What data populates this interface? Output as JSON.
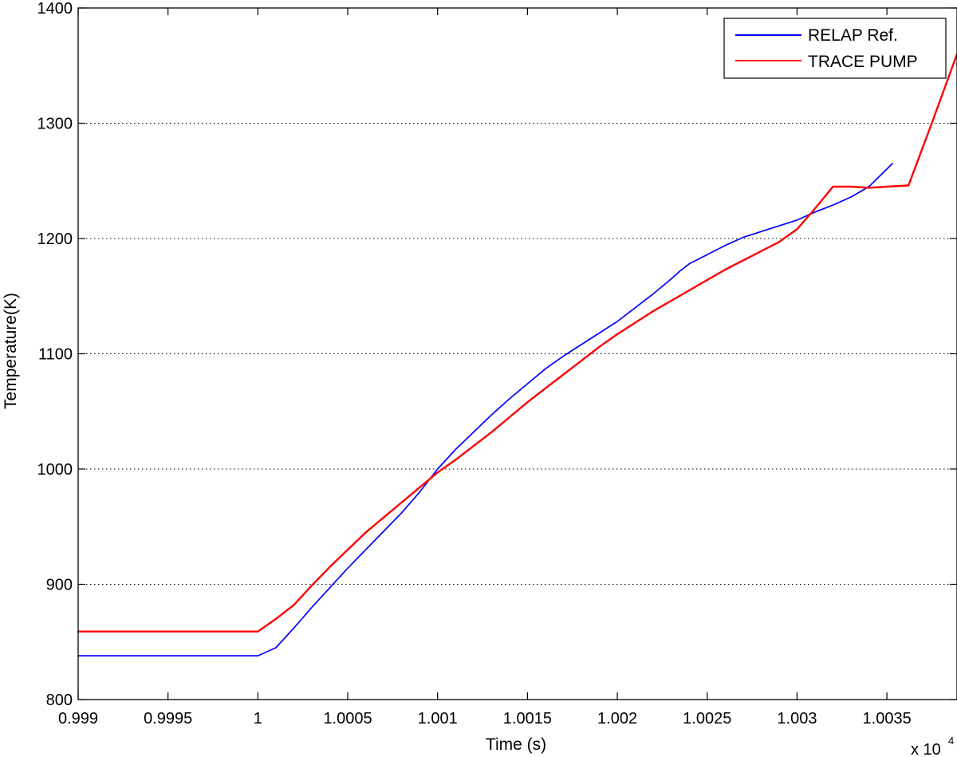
{
  "chart_data": {
    "type": "line",
    "title": "",
    "xlabel": "Time (s)",
    "ylabel": "Temperature(K)",
    "x_exponent_label": "x 10",
    "x_exponent_power": "4",
    "xlim": [
      0.999,
      1.00389
    ],
    "ylim": [
      800,
      1400
    ],
    "xticks": [
      0.999,
      0.9995,
      1,
      1.0005,
      1.001,
      1.0015,
      1.002,
      1.0025,
      1.003,
      1.0035
    ],
    "xtick_labels": [
      "0.999",
      "0.9995",
      "1",
      "1.0005",
      "1.001",
      "1.0015",
      "1.002",
      "1.0025",
      "1.003",
      "1.0035"
    ],
    "yticks": [
      800,
      900,
      1000,
      1100,
      1200,
      1300,
      1400
    ],
    "ytick_labels": [
      "800",
      "900",
      "1000",
      "1100",
      "1200",
      "1300",
      "1400"
    ],
    "grid": "horizontal dotted",
    "legend_position": "top-right",
    "series": [
      {
        "name": "RELAP Ref.",
        "color": "#0000ff",
        "x": [
          0.999,
          1,
          1.0001,
          1.0002,
          1.0003,
          1.0004,
          1.0005,
          1.0006,
          1.0007,
          1.0008,
          1.0009,
          1.001,
          1.0011,
          1.0012,
          1.0013,
          1.0014,
          1.0015,
          1.0016,
          1.0017,
          1.0018,
          1.0019,
          1.002,
          1.0021,
          1.0022,
          1.0023,
          1.00235,
          1.0024,
          1.0025,
          1.0026,
          1.0027,
          1.0028,
          1.0029,
          1.003,
          1.0031,
          1.0032,
          1.0033,
          1.0034,
          1.00353
        ],
        "y": [
          838,
          838,
          845,
          862,
          880,
          897,
          914,
          930,
          946,
          962,
          980,
          1000,
          1017,
          1032,
          1047,
          1061,
          1074,
          1087,
          1098,
          1108,
          1118,
          1128,
          1140,
          1152,
          1165,
          1172,
          1178,
          1186,
          1194,
          1201,
          1206,
          1211,
          1216,
          1223,
          1229,
          1236,
          1245,
          1265
        ]
      },
      {
        "name": "TRACE PUMP",
        "color": "#ff0000",
        "x": [
          0.999,
          1,
          1.0001,
          1.0002,
          1.0003,
          1.0004,
          1.0005,
          1.0006,
          1.0007,
          1.0008,
          1.0009,
          1.001,
          1.0011,
          1.0012,
          1.0013,
          1.0014,
          1.0015,
          1.0016,
          1.0017,
          1.0018,
          1.0019,
          1.002,
          1.0021,
          1.0022,
          1.0023,
          1.0024,
          1.0025,
          1.0026,
          1.0027,
          1.0028,
          1.0029,
          1.003,
          1.0031,
          1.0032,
          1.0033,
          1.0034,
          1.0035,
          1.00362,
          1.00375,
          1.00389
        ],
        "y": [
          859,
          859,
          870,
          882,
          899,
          915,
          930,
          945,
          958,
          971,
          984,
          997,
          1008,
          1020,
          1032,
          1045,
          1058,
          1070,
          1082,
          1094,
          1106,
          1117,
          1127,
          1137,
          1146,
          1155,
          1164,
          1173,
          1181,
          1189,
          1197,
          1208,
          1226,
          1245,
          1245,
          1244,
          1245,
          1246,
          1300,
          1360
        ]
      }
    ]
  }
}
